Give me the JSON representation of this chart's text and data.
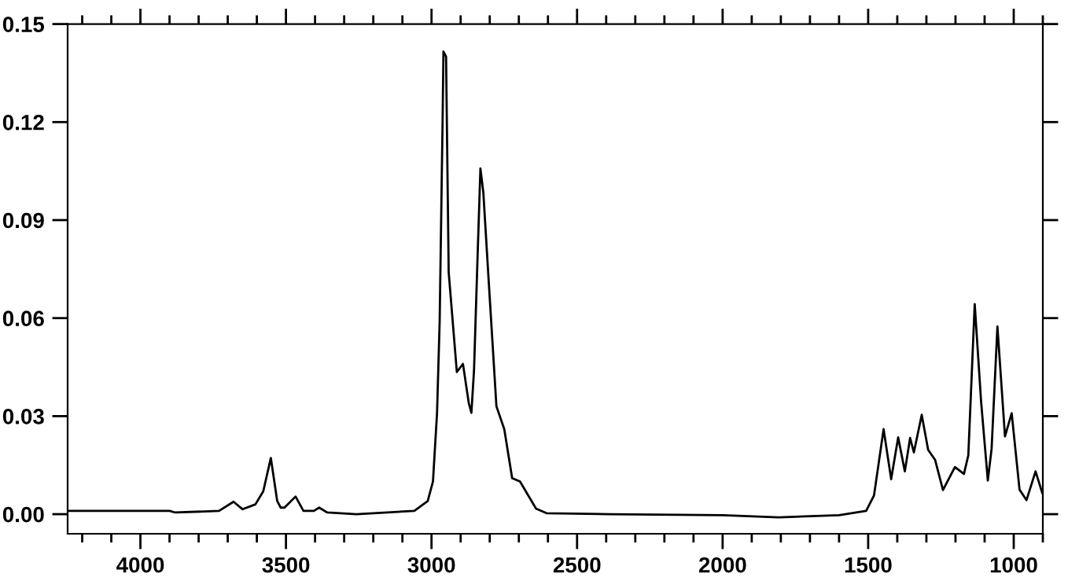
{
  "chart_data": {
    "type": "line",
    "series": [
      {
        "color": "#000000",
        "x": [
          4250,
          3900,
          3880,
          3730,
          3680,
          3649,
          3605,
          3578,
          3552,
          3530,
          3518,
          3505,
          3467,
          3440,
          3404,
          3386,
          3358,
          3258,
          3059,
          3013,
          2995,
          2981,
          2972,
          2962,
          2959,
          2950,
          2941,
          2913,
          2892,
          2872,
          2863,
          2854,
          2841,
          2832,
          2822,
          2804,
          2777,
          2750,
          2723,
          2696,
          2641,
          2605,
          2387,
          2000,
          1808,
          1600,
          1507,
          1480,
          1447,
          1421,
          1397,
          1374,
          1356,
          1343,
          1316,
          1294,
          1270,
          1243,
          1202,
          1171,
          1156,
          1134,
          1112,
          1089,
          1076,
          1056,
          1030,
          1007,
          980,
          956,
          925,
          902
        ],
        "values": [
          0.001,
          0.001,
          0.0005,
          0.001,
          0.0038,
          0.0015,
          0.003,
          0.007,
          0.0172,
          0.004,
          0.002,
          0.002,
          0.0054,
          0.001,
          0.001,
          0.002,
          0.0005,
          0.0,
          0.001,
          0.004,
          0.01,
          0.031,
          0.059,
          0.12,
          0.1416,
          0.14,
          0.074,
          0.0435,
          0.046,
          0.034,
          0.031,
          0.044,
          0.081,
          0.1058,
          0.0985,
          0.072,
          0.033,
          0.026,
          0.011,
          0.01,
          0.0017,
          0.0003,
          0.0,
          -0.0003,
          -0.001,
          -0.0003,
          0.001,
          0.0057,
          0.026,
          0.0107,
          0.0235,
          0.0131,
          0.0233,
          0.0189,
          0.0304,
          0.0197,
          0.0166,
          0.0074,
          0.0144,
          0.0123,
          0.018,
          0.0643,
          0.0344,
          0.0103,
          0.02,
          0.0574,
          0.0238,
          0.0309,
          0.0075,
          0.0043,
          0.0131,
          0.0065
        ]
      }
    ],
    "xlim": [
      4250,
      900
    ],
    "ylim": [
      -0.006,
      0.15
    ],
    "xticks": [
      {
        "value": 4200,
        "label": null
      },
      {
        "value": 4100,
        "label": null
      },
      4000,
      {
        "value": 3900,
        "label": null
      },
      {
        "value": 3800,
        "label": null
      },
      {
        "value": 3700,
        "label": null
      },
      {
        "value": 3600,
        "label": null
      },
      3500,
      {
        "value": 3400,
        "label": null
      },
      {
        "value": 3300,
        "label": null
      },
      {
        "value": 3200,
        "label": null
      },
      {
        "value": 3100,
        "label": null
      },
      3000,
      {
        "value": 2900,
        "label": null
      },
      {
        "value": 2800,
        "label": null
      },
      {
        "value": 2700,
        "label": null
      },
      {
        "value": 2600,
        "label": null
      },
      2500,
      {
        "value": 2400,
        "label": null
      },
      {
        "value": 2300,
        "label": null
      },
      {
        "value": 2200,
        "label": null
      },
      {
        "value": 2100,
        "label": null
      },
      2000,
      {
        "value": 1900,
        "label": null
      },
      {
        "value": 1800,
        "label": null
      },
      {
        "value": 1700,
        "label": null
      },
      {
        "value": 1600,
        "label": null
      },
      1500,
      {
        "value": 1400,
        "label": null
      },
      {
        "value": 1300,
        "label": null
      },
      {
        "value": 1200,
        "label": null
      },
      {
        "value": 1100,
        "label": null
      },
      1000,
      {
        "value": 900,
        "label": null
      }
    ],
    "yticks": [
      {
        "value": 0,
        "label": "0.00"
      },
      0.03,
      0.06,
      0.09,
      0.12,
      0.15
    ],
    "grid": false,
    "legend": false,
    "marker": "none",
    "line_style": "solid"
  }
}
